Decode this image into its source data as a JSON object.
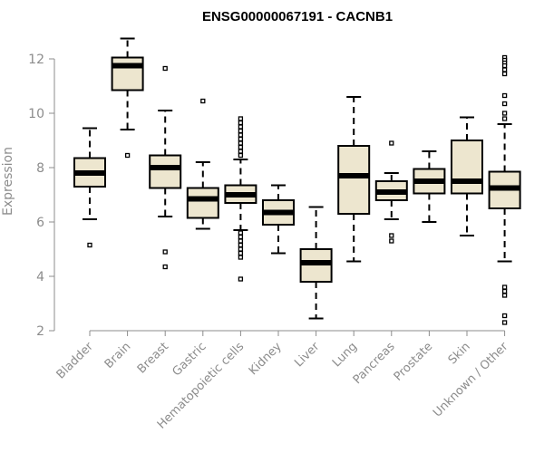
{
  "chart_data": {
    "type": "boxplot",
    "title": "ENSG00000067191 - CACNB1",
    "xlabel": "",
    "ylabel": "Expression",
    "ylim": [
      2,
      12.8
    ],
    "yticks": [
      2,
      4,
      6,
      8,
      10,
      12
    ],
    "box_color": "#ede6cf",
    "categories": [
      "Bladder",
      "Brain",
      "Breast",
      "Gastric",
      "Hematopoietic cells",
      "Kidney",
      "Liver",
      "Lung",
      "Pancreas",
      "Prostate",
      "Skin",
      "Unknown / Other"
    ],
    "boxes": [
      {
        "name": "Bladder",
        "whisker_low": 6.1,
        "q1": 7.3,
        "median": 7.8,
        "q3": 8.35,
        "whisker_high": 9.45,
        "outliers": [
          5.15
        ]
      },
      {
        "name": "Brain",
        "whisker_low": 9.4,
        "q1": 10.85,
        "median": 11.75,
        "q3": 12.05,
        "whisker_high": 12.75,
        "outliers": [
          8.45
        ]
      },
      {
        "name": "Breast",
        "whisker_low": 6.2,
        "q1": 7.25,
        "median": 8.0,
        "q3": 8.45,
        "whisker_high": 10.1,
        "outliers": [
          11.65,
          4.9,
          4.35
        ]
      },
      {
        "name": "Gastric",
        "whisker_low": 5.75,
        "q1": 6.15,
        "median": 6.85,
        "q3": 7.25,
        "whisker_high": 8.2,
        "outliers": [
          10.45
        ]
      },
      {
        "name": "Hematopoietic cells",
        "whisker_low": 5.7,
        "q1": 6.7,
        "median": 7.0,
        "q3": 7.35,
        "whisker_high": 8.3,
        "outliers": [
          9.8,
          9.65,
          9.5,
          9.35,
          9.2,
          9.05,
          8.9,
          8.75,
          8.6,
          8.45,
          5.6,
          5.45,
          5.3,
          5.15,
          5.0,
          4.85,
          4.7,
          3.9
        ]
      },
      {
        "name": "Kidney",
        "whisker_low": 4.85,
        "q1": 5.9,
        "median": 6.35,
        "q3": 6.8,
        "whisker_high": 7.35,
        "outliers": []
      },
      {
        "name": "Liver",
        "whisker_low": 2.45,
        "q1": 3.8,
        "median": 4.5,
        "q3": 5.0,
        "whisker_high": 6.55,
        "outliers": []
      },
      {
        "name": "Lung",
        "whisker_low": 4.55,
        "q1": 6.3,
        "median": 7.7,
        "q3": 8.8,
        "whisker_high": 10.6,
        "outliers": []
      },
      {
        "name": "Pancreas",
        "whisker_low": 6.1,
        "q1": 6.8,
        "median": 7.1,
        "q3": 7.5,
        "whisker_high": 7.8,
        "outliers": [
          8.9,
          5.5,
          5.3
        ]
      },
      {
        "name": "Prostate",
        "whisker_low": 6.0,
        "q1": 7.05,
        "median": 7.5,
        "q3": 7.95,
        "whisker_high": 8.6,
        "outliers": []
      },
      {
        "name": "Skin",
        "whisker_low": 5.5,
        "q1": 7.05,
        "median": 7.5,
        "q3": 9.0,
        "whisker_high": 9.85,
        "outliers": []
      },
      {
        "name": "Unknown / Other",
        "whisker_low": 4.55,
        "q1": 6.5,
        "median": 7.25,
        "q3": 7.85,
        "whisker_high": 9.6,
        "outliers": [
          12.05,
          11.95,
          11.85,
          11.75,
          11.6,
          11.45,
          10.65,
          10.35,
          10.0,
          9.8,
          3.6,
          3.45,
          3.3,
          2.55,
          2.3
        ]
      }
    ]
  }
}
